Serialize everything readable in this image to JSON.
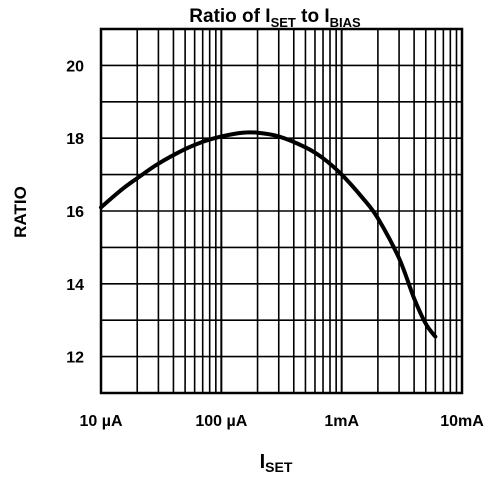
{
  "chart_data": {
    "type": "line",
    "title_parts": [
      "Ratio of I",
      "SET",
      " to I",
      "BIAS"
    ],
    "xlabel_parts": [
      "I",
      "SET"
    ],
    "ylabel": "RATIO",
    "x_scale": "log",
    "x_unit": "A",
    "xlim": [
      1e-05,
      0.01
    ],
    "ylim": [
      11,
      21
    ],
    "x_ticks": [
      {
        "value": 1e-05,
        "label": "10 µA"
      },
      {
        "value": 0.0001,
        "label": "100 µA"
      },
      {
        "value": 0.001,
        "label": "1mA"
      },
      {
        "value": 0.01,
        "label": "10mA"
      }
    ],
    "y_ticks": [
      {
        "value": 12,
        "label": "12"
      },
      {
        "value": 14,
        "label": "14"
      },
      {
        "value": 16,
        "label": "16"
      },
      {
        "value": 18,
        "label": "18"
      },
      {
        "value": 20,
        "label": "20"
      }
    ],
    "grid": true,
    "series": [
      {
        "x": [
          1e-05,
          1.5e-05,
          2e-05,
          3e-05,
          5e-05,
          7e-05,
          0.0001,
          0.00015,
          0.0002,
          0.0003,
          0.0005,
          0.0007,
          0.001,
          0.0015,
          0.002,
          0.003,
          0.004,
          0.005,
          0.006
        ],
        "y": [
          16.1,
          16.6,
          16.9,
          17.3,
          17.7,
          17.9,
          18.05,
          18.15,
          18.15,
          18.05,
          17.75,
          17.45,
          17.0,
          16.35,
          15.8,
          14.7,
          13.6,
          12.9,
          12.55
        ]
      }
    ]
  }
}
